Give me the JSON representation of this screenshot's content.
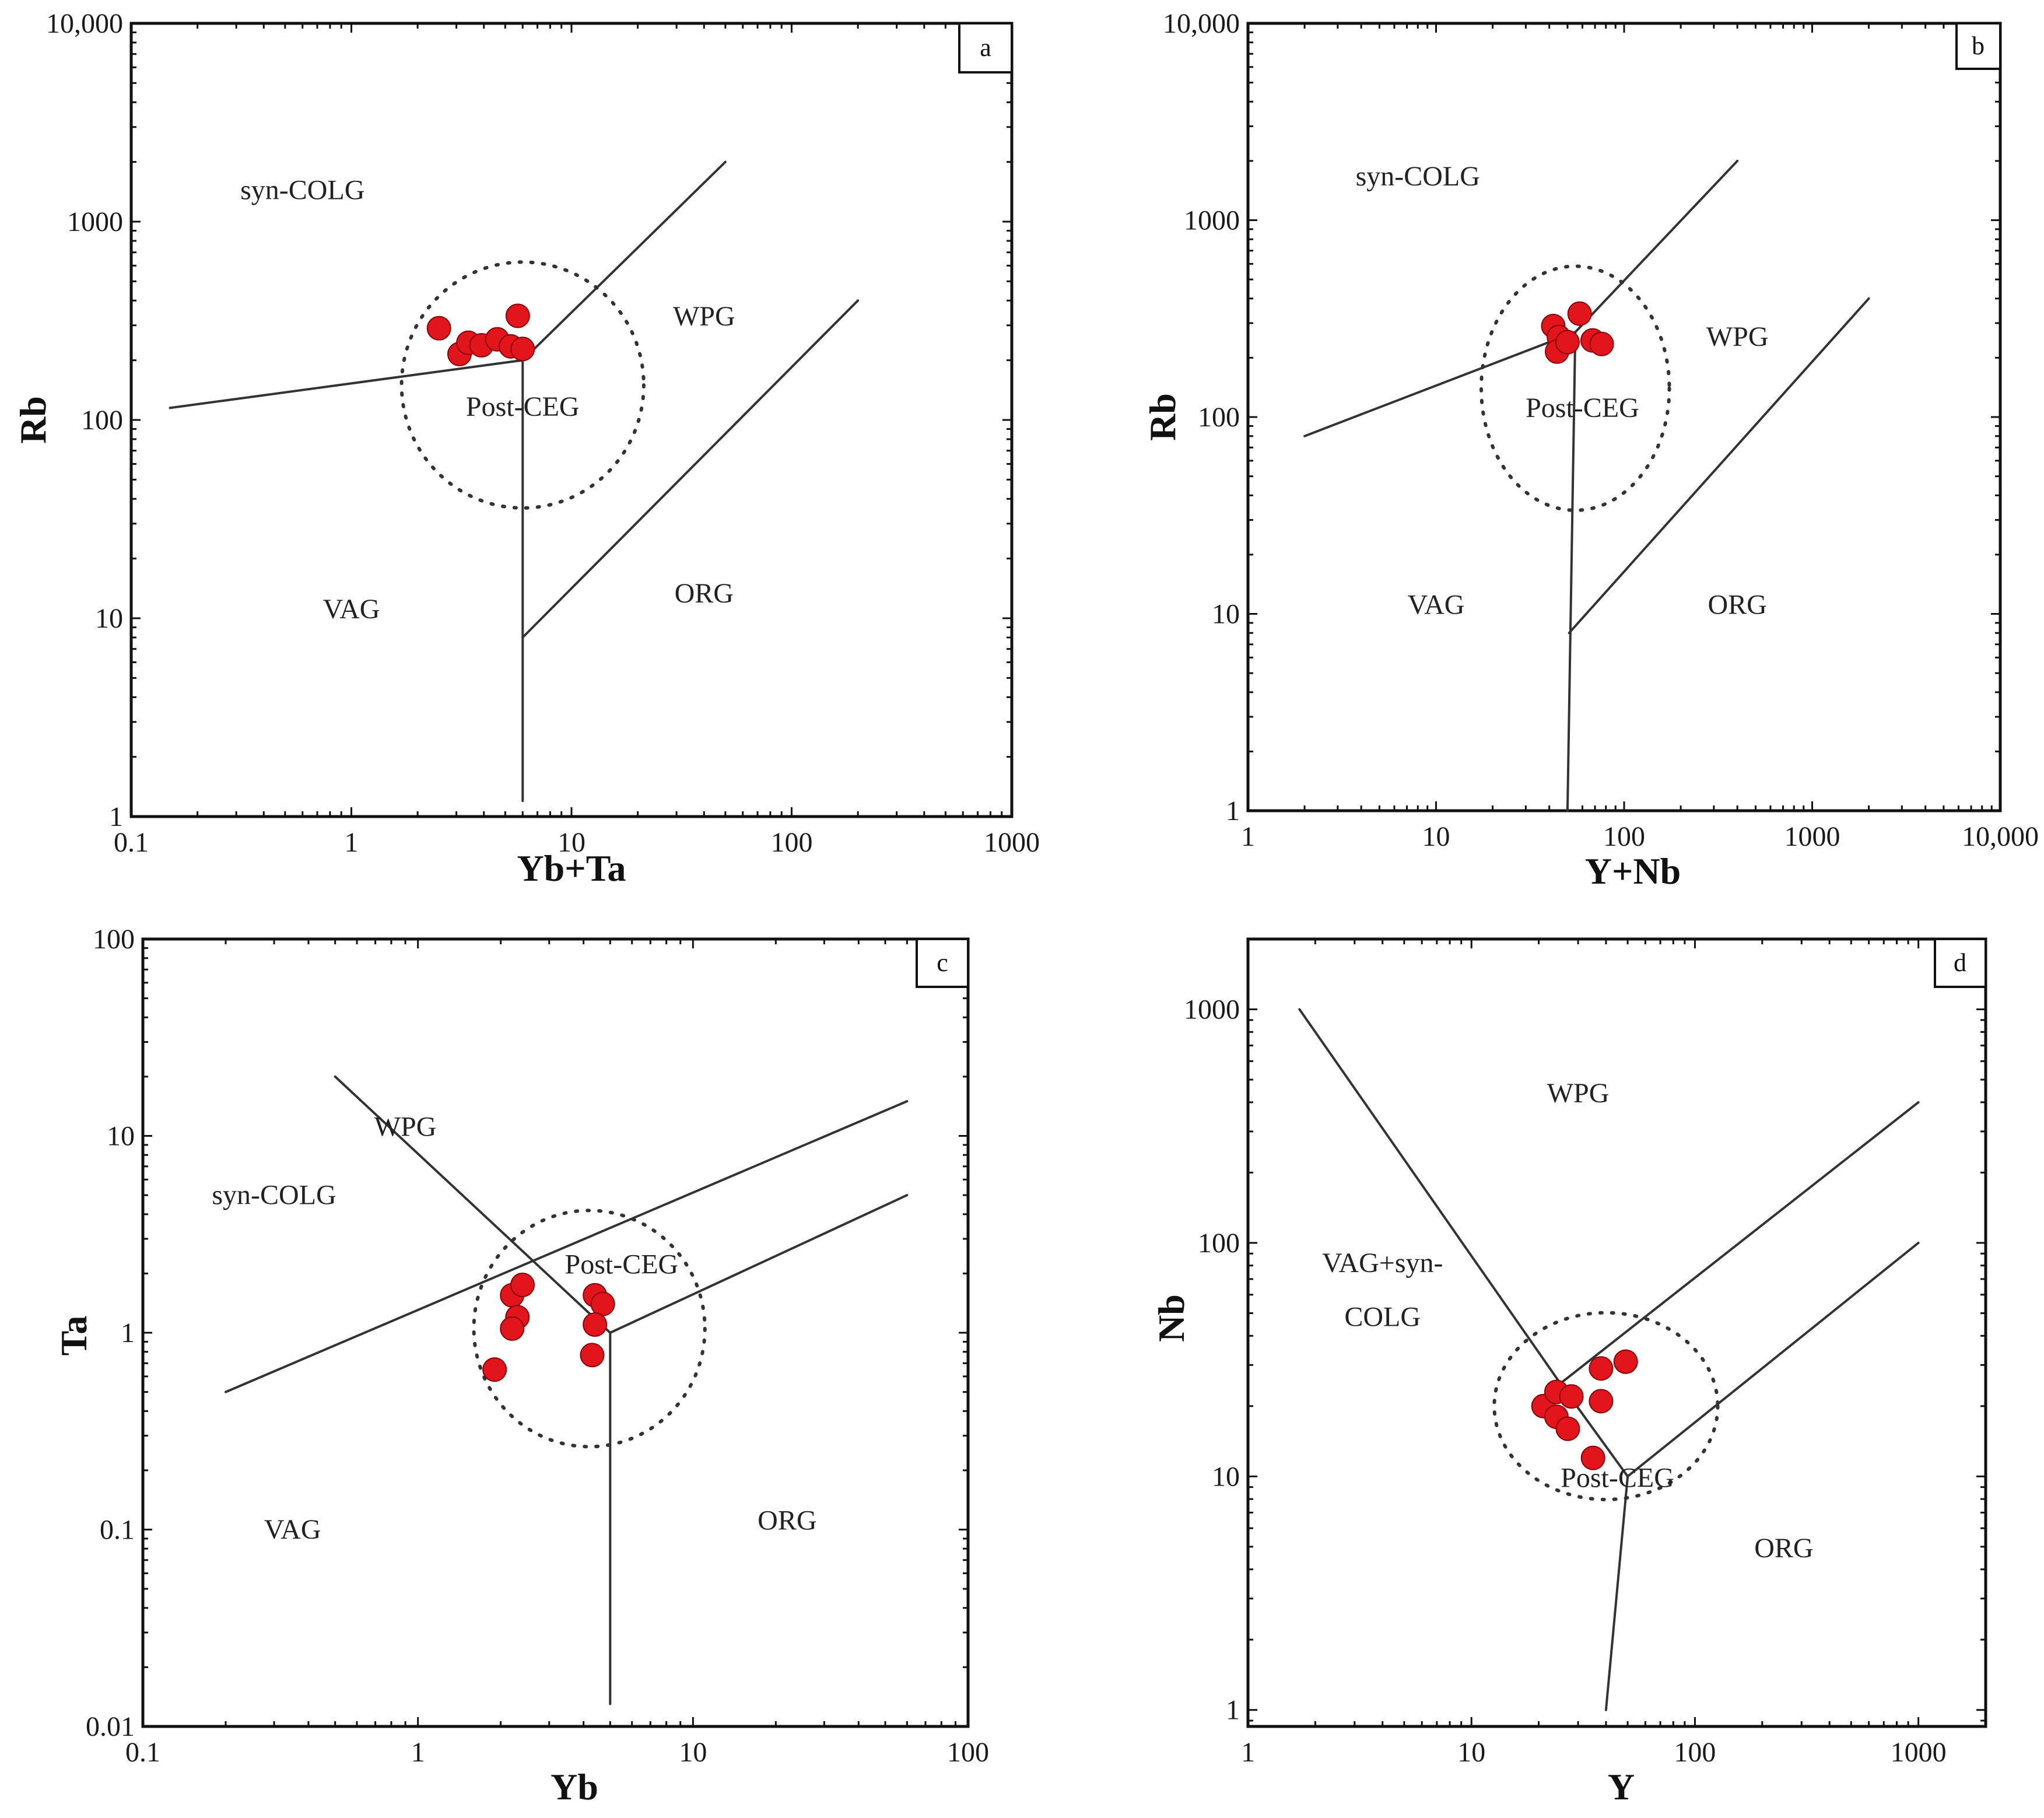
{
  "colors": {
    "point_fill": "#e2141c",
    "point_stroke": "#8a0008",
    "line": "#333333",
    "frame": "#111111"
  },
  "chart_data": [
    {
      "panel": "a",
      "type": "scatter",
      "xscale": "log",
      "yscale": "log",
      "xlim": [
        0.1,
        1000
      ],
      "ylim": [
        1,
        10000
      ],
      "xticks": [
        0.1,
        1,
        10,
        100,
        1000
      ],
      "xtick_labels": [
        "0.1",
        "1",
        "10",
        "100",
        "1000"
      ],
      "yticks": [
        1,
        10,
        100,
        1000,
        10000
      ],
      "ytick_labels": [
        "1",
        "10",
        "100",
        "1000",
        "10,000"
      ],
      "xlabel": "Yb+Ta",
      "ylabel": "Rb",
      "boundaries": [
        [
          [
            0.15,
            115
          ],
          [
            6,
            200
          ]
        ],
        [
          [
            6,
            200
          ],
          [
            50,
            2000
          ]
        ],
        [
          [
            6,
            200
          ],
          [
            6,
            1.2
          ]
        ],
        [
          [
            6,
            8
          ],
          [
            200,
            400
          ]
        ]
      ],
      "envelope": {
        "center": [
          6,
          150
        ],
        "rx_log": 0.55,
        "ry_log": 0.62
      },
      "labels": [
        {
          "text": "syn-COLG",
          "pos": [
            0.6,
            1300
          ]
        },
        {
          "text": "WPG",
          "pos": [
            40,
            300
          ]
        },
        {
          "text": "Post-CEG",
          "pos": [
            6,
            105
          ]
        },
        {
          "text": "VAG",
          "pos": [
            1,
            10
          ]
        },
        {
          "text": "ORG",
          "pos": [
            40,
            12
          ]
        }
      ],
      "points": [
        [
          2.5,
          290
        ],
        [
          3.1,
          215
        ],
        [
          3.4,
          245
        ],
        [
          3.9,
          238
        ],
        [
          4.6,
          255
        ],
        [
          5.3,
          235
        ],
        [
          6.0,
          228
        ],
        [
          5.7,
          335
        ]
      ]
    },
    {
      "panel": "b",
      "type": "scatter",
      "xscale": "log",
      "yscale": "log",
      "xlim": [
        1,
        10000
      ],
      "ylim": [
        1,
        10000
      ],
      "xticks": [
        1,
        10,
        100,
        1000,
        10000
      ],
      "xtick_labels": [
        "1",
        "10",
        "100",
        "1000",
        "10,000"
      ],
      "yticks": [
        1,
        10,
        100,
        1000,
        10000
      ],
      "ytick_labels": [
        "1",
        "10",
        "100",
        "1000",
        "10,000"
      ],
      "xlabel": "Y+Nb",
      "ylabel": "Rb",
      "boundaries": [
        [
          [
            2,
            80
          ],
          [
            55,
            270
          ]
        ],
        [
          [
            55,
            270
          ],
          [
            400,
            2000
          ]
        ],
        [
          [
            55,
            270
          ],
          [
            50,
            1
          ]
        ],
        [
          [
            51,
            8
          ],
          [
            2000,
            400
          ]
        ]
      ],
      "envelope": {
        "center": [
          55,
          140
        ],
        "rx_log": 0.5,
        "ry_log": 0.62
      },
      "labels": [
        {
          "text": "syn-COLG",
          "pos": [
            8,
            1500
          ]
        },
        {
          "text": "WPG",
          "pos": [
            400,
            230
          ]
        },
        {
          "text": "Post-CEG",
          "pos": [
            60,
            100
          ]
        },
        {
          "text": "VAG",
          "pos": [
            10,
            10
          ]
        },
        {
          "text": "ORG",
          "pos": [
            400,
            10
          ]
        }
      ],
      "points": [
        [
          42,
          290
        ],
        [
          45,
          255
        ],
        [
          44,
          215
        ],
        [
          50,
          240
        ],
        [
          58,
          335
        ],
        [
          68,
          245
        ],
        [
          76,
          235
        ]
      ]
    },
    {
      "panel": "c",
      "type": "scatter",
      "xscale": "log",
      "yscale": "log",
      "xlim": [
        0.1,
        100
      ],
      "ylim": [
        0.01,
        100
      ],
      "xticks": [
        0.1,
        1,
        10,
        100
      ],
      "xtick_labels": [
        "0.1",
        "1",
        "10",
        "100"
      ],
      "yticks": [
        0.01,
        0.1,
        1,
        10,
        100
      ],
      "ytick_labels": [
        "0.01",
        "0.1",
        "1",
        "10",
        "100"
      ],
      "xlabel": "Yb",
      "ylabel": "Ta",
      "boundaries": [
        [
          [
            0.5,
            20
          ],
          [
            5,
            1
          ]
        ],
        [
          [
            0.2,
            0.5
          ],
          [
            60,
            15
          ]
        ],
        [
          [
            5,
            1
          ],
          [
            60,
            5
          ]
        ],
        [
          [
            5,
            1
          ],
          [
            5,
            0.013
          ]
        ]
      ],
      "envelope": {
        "center": [
          4.2,
          1.05
        ],
        "rx_log": 0.42,
        "ry_log": 0.6
      },
      "labels": [
        {
          "text": "WPG",
          "pos": [
            0.9,
            10
          ]
        },
        {
          "text": "syn-COLG",
          "pos": [
            0.3,
            4.5
          ]
        },
        {
          "text": "Post-CEG",
          "pos": [
            5.5,
            2.0
          ]
        },
        {
          "text": "VAG",
          "pos": [
            0.35,
            0.09
          ]
        },
        {
          "text": "ORG",
          "pos": [
            22,
            0.1
          ]
        }
      ],
      "points": [
        [
          2.2,
          1.55
        ],
        [
          2.4,
          1.75
        ],
        [
          2.3,
          1.2
        ],
        [
          2.2,
          1.05
        ],
        [
          1.9,
          0.65
        ],
        [
          4.4,
          1.55
        ],
        [
          4.7,
          1.4
        ],
        [
          4.4,
          1.1
        ],
        [
          4.3,
          0.77
        ]
      ]
    },
    {
      "panel": "d",
      "type": "scatter",
      "xscale": "log",
      "yscale": "log",
      "xlim": [
        1,
        2000
      ],
      "ylim": [
        0.85,
        2000
      ],
      "xticks": [
        1,
        10,
        100,
        1000
      ],
      "xtick_labels": [
        "1",
        "10",
        "100",
        "1000"
      ],
      "yticks": [
        1,
        10,
        100,
        1000
      ],
      "ytick_labels": [
        "1",
        "10",
        "100",
        "1000"
      ],
      "xlabel": "Y",
      "ylabel": "Nb",
      "boundaries": [
        [
          [
            1.7,
            1000
          ],
          [
            25,
            25
          ]
        ],
        [
          [
            25,
            25
          ],
          [
            50,
            10
          ]
        ],
        [
          [
            25,
            25
          ],
          [
            1000,
            400
          ]
        ],
        [
          [
            50,
            10
          ],
          [
            1000,
            100
          ]
        ],
        [
          [
            50,
            10
          ],
          [
            40,
            1
          ]
        ]
      ],
      "envelope": {
        "center": [
          40,
          20
        ],
        "rx_log": 0.5,
        "ry_log": 0.4
      },
      "labels": [
        {
          "text": "WPG",
          "pos": [
            30,
            400
          ]
        },
        {
          "text": "VAG+syn-",
          "pos": [
            4,
            75
          ]
        },
        {
          "text": "COLG",
          "pos": [
            4,
            44
          ]
        },
        {
          "text": "Post-CEG",
          "pos": [
            45,
            9
          ]
        },
        {
          "text": "ORG",
          "pos": [
            250,
            4.5
          ]
        }
      ],
      "points": [
        [
          21,
          20
        ],
        [
          24,
          23
        ],
        [
          28,
          22
        ],
        [
          24,
          18
        ],
        [
          27,
          16
        ],
        [
          38,
          29
        ],
        [
          49,
          31
        ],
        [
          38,
          21
        ],
        [
          35,
          12
        ]
      ]
    }
  ],
  "panel_labels": [
    "a",
    "b",
    "c",
    "d"
  ]
}
